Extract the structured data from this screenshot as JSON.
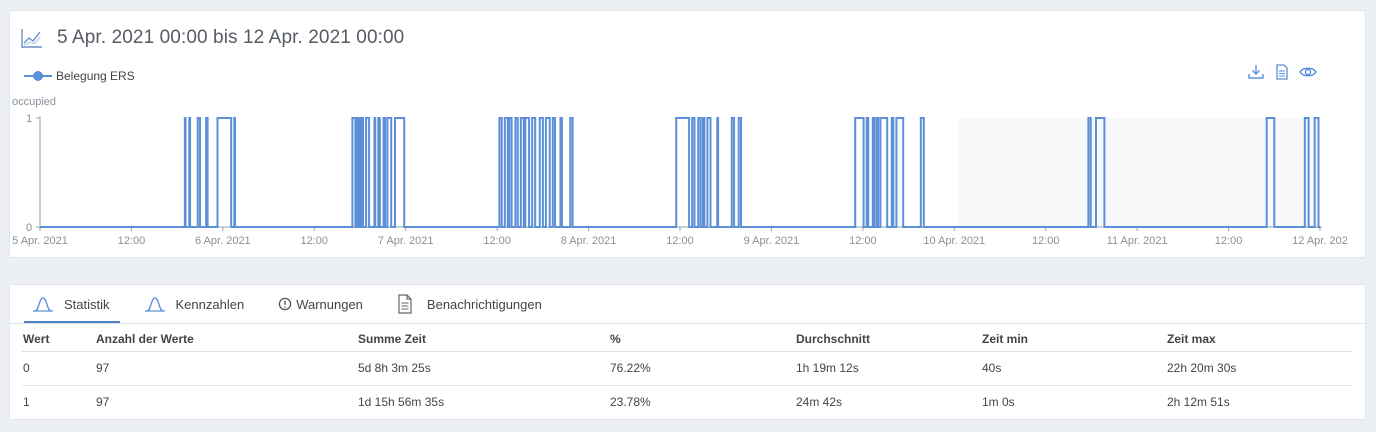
{
  "chart": {
    "title": "5 Apr. 2021 00:00 bis 12 Apr. 2021 00:00",
    "legend_label": "Belegung ERS",
    "y_axis_label": "occupied",
    "actions": [
      {
        "icon": "download-icon"
      },
      {
        "icon": "document-icon"
      },
      {
        "icon": "eye-icon"
      }
    ],
    "colors": {
      "line": "#5b8fd8",
      "future_shade": "#f7f8fa",
      "axis": "#9aa0a6"
    }
  },
  "chart_data": {
    "type": "line",
    "title": "",
    "xlabel": "",
    "ylabel": "occupied",
    "ylim": [
      0,
      1
    ],
    "y_ticks": [
      "0",
      "1"
    ],
    "x_tick_labels": [
      "5 Apr. 2021",
      "12:00",
      "6 Apr. 2021",
      "12:00",
      "7 Apr. 2021",
      "12:00",
      "8 Apr. 2021",
      "12:00",
      "9 Apr. 2021",
      "12:00",
      "10 Apr. 2021",
      "12:00",
      "11 Apr. 2021",
      "12:00",
      "12 Apr. 202"
    ],
    "x_unit": "hours since 5 Apr. 2021 00:00",
    "xlim": [
      0,
      168
    ],
    "shaded_range_hours": [
      120.5,
      168
    ],
    "series": [
      {
        "name": "Belegung ERS",
        "occupied_intervals_hours": [
          [
            19.0,
            19.1
          ],
          [
            19.6,
            19.7
          ],
          [
            20.7,
            21.0
          ],
          [
            21.8,
            22.0
          ],
          [
            23.3,
            25.1
          ],
          [
            25.5,
            25.6
          ],
          [
            41.0,
            41.4
          ],
          [
            41.5,
            41.7
          ],
          [
            41.8,
            42.0
          ],
          [
            42.2,
            42.4
          ],
          [
            42.8,
            43.2
          ],
          [
            43.9,
            44.0
          ],
          [
            44.4,
            44.6
          ],
          [
            45.1,
            45.3
          ],
          [
            45.6,
            46.1
          ],
          [
            46.6,
            47.8
          ],
          [
            60.3,
            60.6
          ],
          [
            61.0,
            61.4
          ],
          [
            61.6,
            61.9
          ],
          [
            62.4,
            62.7
          ],
          [
            63.1,
            63.5
          ],
          [
            63.7,
            64.2
          ],
          [
            64.6,
            65.0
          ],
          [
            65.6,
            66.0
          ],
          [
            66.4,
            66.9
          ],
          [
            67.3,
            67.6
          ],
          [
            68.3,
            68.5
          ],
          [
            69.6,
            69.9
          ],
          [
            83.5,
            85.2
          ],
          [
            85.6,
            85.9
          ],
          [
            86.4,
            86.7
          ],
          [
            87.0,
            87.2
          ],
          [
            87.6,
            88.0
          ],
          [
            88.9,
            89.0
          ],
          [
            90.8,
            91.1
          ],
          [
            91.7,
            92.0
          ],
          [
            107.0,
            108.1
          ],
          [
            108.5,
            108.7
          ],
          [
            109.3,
            109.5
          ],
          [
            109.8,
            110.0
          ],
          [
            110.3,
            111.2
          ],
          [
            111.8,
            112.0
          ],
          [
            112.4,
            113.3
          ],
          [
            115.6,
            116.0
          ],
          [
            137.6,
            137.9
          ],
          [
            138.6,
            139.7
          ],
          [
            161.0,
            162.0
          ],
          [
            166.0,
            166.5
          ],
          [
            167.3,
            167.8
          ]
        ]
      }
    ]
  },
  "stats": {
    "tabs": [
      {
        "label": "Statistik",
        "icon": "distribution-icon",
        "active": true
      },
      {
        "label": "Kennzahlen",
        "icon": "distribution-icon",
        "active": false
      },
      {
        "label": "Warnungen",
        "icon": "warning-icon",
        "active": false
      },
      {
        "label": "Benachrichtigungen",
        "icon": "document-icon",
        "active": false
      }
    ],
    "columns": [
      "Wert",
      "Anzahl der Werte",
      "Summe Zeit",
      "%",
      "Durchschnitt",
      "Zeit min",
      "Zeit max"
    ],
    "rows": [
      [
        "0",
        "97",
        "5d 8h 3m 25s",
        "76.22%",
        "1h 19m 12s",
        "40s",
        "22h 20m 30s"
      ],
      [
        "1",
        "97",
        "1d 15h 56m 35s",
        "23.78%",
        "24m 42s",
        "1m 0s",
        "2h 12m 51s"
      ]
    ]
  }
}
